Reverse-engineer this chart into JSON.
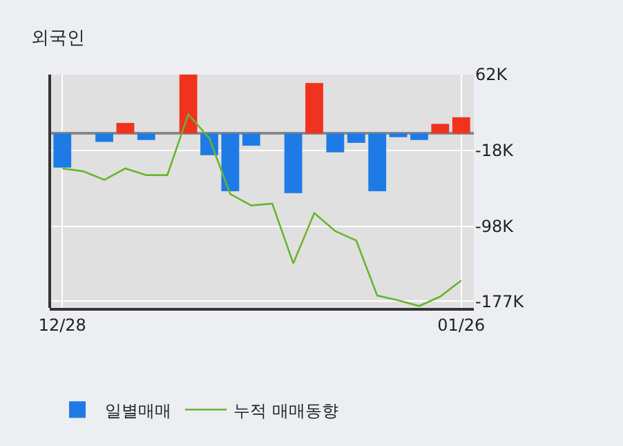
{
  "chart_data": {
    "type": "bar",
    "title": "외국인",
    "categories": [
      "12/28",
      null,
      null,
      null,
      null,
      null,
      null,
      null,
      null,
      null,
      null,
      null,
      null,
      null,
      null,
      null,
      null,
      null,
      null,
      "01/26"
    ],
    "series": [
      {
        "name": "일별매매",
        "colors": [
          "#1e7be6",
          "#1e7be6",
          "#1e7be6",
          "#f0321e",
          "#1e7be6",
          "#1e7be6",
          "#f0321e",
          "#1e7be6",
          "#1e7be6",
          "#1e7be6",
          "#1e7be6",
          "#1e7be6",
          "#f0321e",
          "#1e7be6",
          "#1e7be6",
          "#1e7be6",
          "#1e7be6",
          "#1e7be6",
          "#f0321e",
          "#f0321e"
        ],
        "values": [
          -36000,
          0,
          -9000,
          11000,
          -7000,
          0,
          62000,
          -23000,
          -61000,
          -13000,
          0,
          -63000,
          53000,
          -20000,
          -10000,
          -61000,
          -4000,
          -7000,
          10000,
          17000
        ]
      },
      {
        "name": "누적 매매동향",
        "type": "line",
        "color": "#6ab42d",
        "values": [
          -37000,
          -40000,
          -49000,
          -37000,
          -44000,
          -44000,
          20000,
          -5000,
          -64000,
          -76000,
          -74000,
          -137000,
          -84000,
          -103000,
          -113000,
          -171000,
          -176000,
          -182000,
          -172000,
          -155000
        ]
      }
    ],
    "ylim": [
      -184000,
      62000
    ],
    "yticks": [
      {
        "value": 62000,
        "label": "62K"
      },
      {
        "value": -18000,
        "label": "-18K"
      },
      {
        "value": -98000,
        "label": "-98K"
      },
      {
        "value": -177000,
        "label": "-177K"
      }
    ],
    "grid": true,
    "legend": "bottom",
    "marker": "none",
    "line_style": "solid"
  }
}
